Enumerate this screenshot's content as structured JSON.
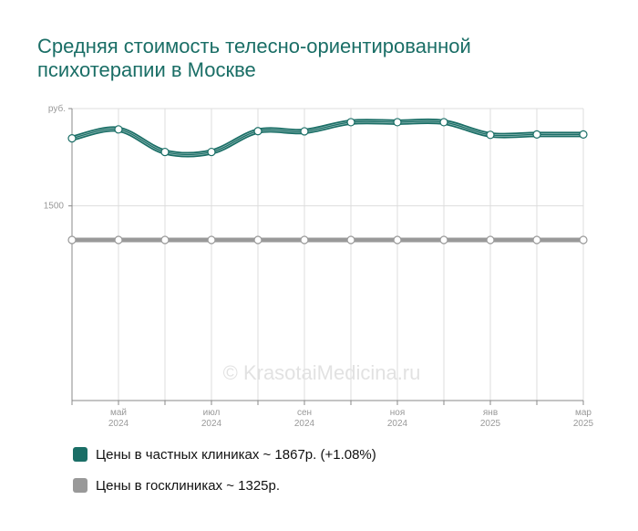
{
  "title": "Средняя стоимость телесно-ориентированной психотерапии в Москве",
  "watermark": "© KrasotaiMedicina.ru",
  "colors": {
    "private": "#1a6e66",
    "public": "#999999",
    "title": "#1a6e66"
  },
  "chart_data": {
    "type": "line",
    "title": "Средняя стоимость телесно-ориентированной психотерапии в Москве",
    "xlabel": "",
    "ylabel": "",
    "y_unit_label": "руб.",
    "y_ticks": [
      1500
    ],
    "ylim": [
      500,
      2000
    ],
    "grid": true,
    "legend_position": "bottom-left",
    "x": [
      "2024-04",
      "2024-05",
      "2024-06",
      "2024-07",
      "2024-08",
      "2024-09",
      "2024-10",
      "2024-11",
      "2024-12",
      "2025-01",
      "2025-02",
      "2025-03"
    ],
    "x_tick_labels": [
      {
        "month": "май",
        "year": "2024",
        "index": 1
      },
      {
        "month": "июл",
        "year": "2024",
        "index": 3
      },
      {
        "month": "сен",
        "year": "2024",
        "index": 5
      },
      {
        "month": "ноя",
        "year": "2024",
        "index": 7
      },
      {
        "month": "янв",
        "year": "2025",
        "index": 9
      },
      {
        "month": "мар",
        "year": "2025",
        "index": 11
      }
    ],
    "series": [
      {
        "name": "Цены в частных клиниках",
        "color": "#1a6e66",
        "values": [
          1847,
          1893,
          1777,
          1777,
          1884,
          1883,
          1930,
          1930,
          1930,
          1865,
          1867,
          1867
        ]
      },
      {
        "name": "Цены в госклиниках",
        "color": "#999999",
        "values": [
          1325,
          1325,
          1325,
          1325,
          1325,
          1325,
          1325,
          1325,
          1325,
          1325,
          1325,
          1325
        ]
      }
    ]
  },
  "legend": [
    {
      "label": "Цены в частных клиниках ~ 1867р. (+1.08%)",
      "color": "#1a6e66"
    },
    {
      "label": "Цены в госклиниках ~ 1325р.",
      "color": "#999999"
    }
  ]
}
